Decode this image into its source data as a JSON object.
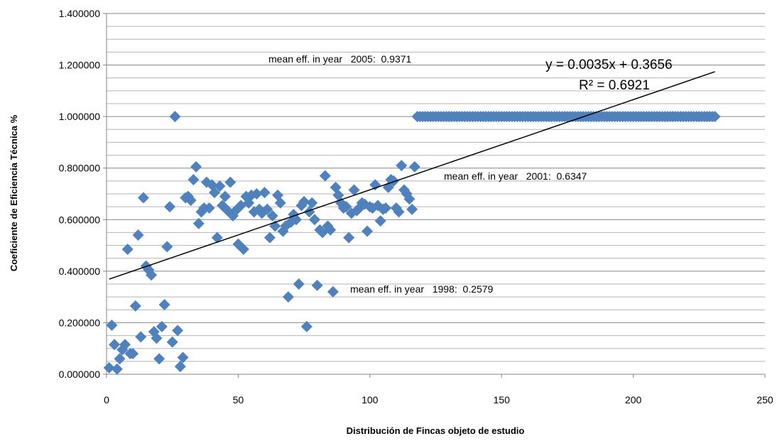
{
  "chart_data": {
    "type": "scatter",
    "title": "",
    "xlabel": "Distribución de Fincas objeto de estudio",
    "ylabel": "Coeficiente de Eficiencia Técnica %",
    "xlim": [
      0,
      250
    ],
    "ylim": [
      0,
      1.4
    ],
    "x_ticks": [
      "0",
      "50",
      "100",
      "150",
      "200",
      "250"
    ],
    "y_ticks": [
      "0.000000",
      "0.200000",
      "0.400000",
      "0.600000",
      "0.800000",
      "1.000000",
      "1.200000",
      "1.400000"
    ],
    "grid": "horizontal",
    "legend": "none",
    "marker": "diamond",
    "marker_color": "#4f81bd",
    "points": [
      [
        1,
        0.025
      ],
      [
        2,
        0.19
      ],
      [
        3,
        0.115
      ],
      [
        4,
        0.02
      ],
      [
        5,
        0.06
      ],
      [
        6,
        0.095
      ],
      [
        7,
        0.115
      ],
      [
        8,
        0.485
      ],
      [
        9,
        0.08
      ],
      [
        10,
        0.08
      ],
      [
        11,
        0.265
      ],
      [
        12,
        0.54
      ],
      [
        13,
        0.145
      ],
      [
        14,
        0.685
      ],
      [
        15,
        0.42
      ],
      [
        16,
        0.405
      ],
      [
        17,
        0.385
      ],
      [
        18,
        0.165
      ],
      [
        19,
        0.14
      ],
      [
        20,
        0.06
      ],
      [
        21,
        0.185
      ],
      [
        22,
        0.27
      ],
      [
        23,
        0.495
      ],
      [
        24,
        0.65
      ],
      [
        25,
        0.125
      ],
      [
        26,
        1.0
      ],
      [
        27,
        0.17
      ],
      [
        28,
        0.03
      ],
      [
        29,
        0.065
      ],
      [
        30,
        0.685
      ],
      [
        31,
        0.69
      ],
      [
        32,
        0.675
      ],
      [
        33,
        0.755
      ],
      [
        34,
        0.805
      ],
      [
        35,
        0.585
      ],
      [
        36,
        0.63
      ],
      [
        37,
        0.645
      ],
      [
        38,
        0.745
      ],
      [
        39,
        0.645
      ],
      [
        40,
        0.735
      ],
      [
        41,
        0.705
      ],
      [
        42,
        0.53
      ],
      [
        43,
        0.73
      ],
      [
        44,
        0.655
      ],
      [
        45,
        0.69
      ],
      [
        46,
        0.635
      ],
      [
        47,
        0.745
      ],
      [
        48,
        0.615
      ],
      [
        49,
        0.635
      ],
      [
        50,
        0.505
      ],
      [
        51,
        0.655
      ],
      [
        52,
        0.485
      ],
      [
        53,
        0.69
      ],
      [
        54,
        0.665
      ],
      [
        55,
        0.695
      ],
      [
        56,
        0.63
      ],
      [
        57,
        0.7
      ],
      [
        58,
        0.64
      ],
      [
        59,
        0.625
      ],
      [
        60,
        0.705
      ],
      [
        61,
        0.64
      ],
      [
        62,
        0.53
      ],
      [
        63,
        0.615
      ],
      [
        64,
        0.575
      ],
      [
        65,
        0.695
      ],
      [
        66,
        0.665
      ],
      [
        67,
        0.555
      ],
      [
        68,
        0.575
      ],
      [
        69,
        0.3
      ],
      [
        70,
        0.59
      ],
      [
        71,
        0.62
      ],
      [
        72,
        0.6
      ],
      [
        73,
        0.35
      ],
      [
        74,
        0.655
      ],
      [
        75,
        0.67
      ],
      [
        76,
        0.185
      ],
      [
        77,
        0.63
      ],
      [
        78,
        0.665
      ],
      [
        79,
        0.6
      ],
      [
        80,
        0.345
      ],
      [
        81,
        0.56
      ],
      [
        82,
        0.55
      ],
      [
        83,
        0.77
      ],
      [
        84,
        0.575
      ],
      [
        85,
        0.56
      ],
      [
        86,
        0.32
      ],
      [
        87,
        0.725
      ],
      [
        88,
        0.695
      ],
      [
        89,
        0.665
      ],
      [
        90,
        0.645
      ],
      [
        91,
        0.65
      ],
      [
        92,
        0.53
      ],
      [
        93,
        0.625
      ],
      [
        94,
        0.715
      ],
      [
        95,
        0.635
      ],
      [
        96,
        0.645
      ],
      [
        97,
        0.665
      ],
      [
        98,
        0.66
      ],
      [
        99,
        0.555
      ],
      [
        100,
        0.65
      ],
      [
        101,
        0.645
      ],
      [
        102,
        0.735
      ],
      [
        103,
        0.655
      ],
      [
        104,
        0.595
      ],
      [
        105,
        0.64
      ],
      [
        106,
        0.645
      ],
      [
        107,
        0.725
      ],
      [
        108,
        0.755
      ],
      [
        109,
        0.75
      ],
      [
        110,
        0.645
      ],
      [
        111,
        0.63
      ],
      [
        112,
        0.81
      ],
      [
        113,
        0.715
      ],
      [
        114,
        0.7
      ],
      [
        115,
        0.68
      ],
      [
        116,
        0.64
      ],
      [
        117,
        0.805
      ],
      [
        118,
        1.0
      ],
      [
        119,
        1.0
      ],
      [
        120,
        1.0
      ],
      [
        121,
        1.0
      ],
      [
        122,
        1.0
      ],
      [
        123,
        1.0
      ],
      [
        124,
        1.0
      ],
      [
        125,
        1.0
      ],
      [
        126,
        1.0
      ],
      [
        127,
        1.0
      ],
      [
        128,
        1.0
      ],
      [
        129,
        1.0
      ],
      [
        130,
        1.0
      ],
      [
        131,
        1.0
      ],
      [
        132,
        1.0
      ],
      [
        133,
        1.0
      ],
      [
        134,
        1.0
      ],
      [
        135,
        1.0
      ],
      [
        136,
        1.0
      ],
      [
        137,
        1.0
      ],
      [
        138,
        1.0
      ],
      [
        139,
        1.0
      ],
      [
        140,
        1.0
      ],
      [
        141,
        1.0
      ],
      [
        142,
        1.0
      ],
      [
        143,
        1.0
      ],
      [
        144,
        1.0
      ],
      [
        145,
        1.0
      ],
      [
        146,
        1.0
      ],
      [
        147,
        1.0
      ],
      [
        148,
        1.0
      ],
      [
        149,
        1.0
      ],
      [
        150,
        1.0
      ],
      [
        151,
        1.0
      ],
      [
        152,
        1.0
      ],
      [
        153,
        1.0
      ],
      [
        154,
        1.0
      ],
      [
        155,
        1.0
      ],
      [
        156,
        1.0
      ],
      [
        157,
        1.0
      ],
      [
        158,
        1.0
      ],
      [
        159,
        1.0
      ],
      [
        160,
        1.0
      ],
      [
        161,
        1.0
      ],
      [
        162,
        1.0
      ],
      [
        163,
        1.0
      ],
      [
        164,
        1.0
      ],
      [
        165,
        1.0
      ],
      [
        166,
        1.0
      ],
      [
        167,
        1.0
      ],
      [
        168,
        1.0
      ],
      [
        169,
        1.0
      ],
      [
        170,
        1.0
      ],
      [
        171,
        1.0
      ],
      [
        172,
        1.0
      ],
      [
        173,
        1.0
      ],
      [
        174,
        1.0
      ],
      [
        175,
        1.0
      ],
      [
        176,
        1.0
      ],
      [
        177,
        1.0
      ],
      [
        178,
        1.0
      ],
      [
        179,
        1.0
      ],
      [
        180,
        1.0
      ],
      [
        181,
        1.0
      ],
      [
        182,
        1.0
      ],
      [
        183,
        1.0
      ],
      [
        184,
        1.0
      ],
      [
        185,
        1.0
      ],
      [
        186,
        1.0
      ],
      [
        187,
        1.0
      ],
      [
        188,
        1.0
      ],
      [
        189,
        1.0
      ],
      [
        190,
        1.0
      ],
      [
        191,
        1.0
      ],
      [
        192,
        1.0
      ],
      [
        193,
        1.0
      ],
      [
        194,
        1.0
      ],
      [
        195,
        1.0
      ],
      [
        196,
        1.0
      ],
      [
        197,
        1.0
      ],
      [
        198,
        1.0
      ],
      [
        199,
        1.0
      ],
      [
        200,
        1.0
      ],
      [
        201,
        1.0
      ],
      [
        202,
        1.0
      ],
      [
        203,
        1.0
      ],
      [
        204,
        1.0
      ],
      [
        205,
        1.0
      ],
      [
        206,
        1.0
      ],
      [
        207,
        1.0
      ],
      [
        208,
        1.0
      ],
      [
        209,
        1.0
      ],
      [
        210,
        1.0
      ],
      [
        211,
        1.0
      ],
      [
        212,
        1.0
      ],
      [
        213,
        1.0
      ],
      [
        214,
        1.0
      ],
      [
        215,
        1.0
      ],
      [
        216,
        1.0
      ],
      [
        217,
        1.0
      ],
      [
        218,
        1.0
      ],
      [
        219,
        1.0
      ],
      [
        220,
        1.0
      ],
      [
        221,
        1.0
      ],
      [
        222,
        1.0
      ],
      [
        223,
        1.0
      ],
      [
        224,
        1.0
      ],
      [
        225,
        1.0
      ],
      [
        226,
        1.0
      ],
      [
        227,
        1.0
      ],
      [
        228,
        1.0
      ],
      [
        229,
        1.0
      ],
      [
        230,
        1.0
      ],
      [
        231,
        1.0
      ]
    ],
    "trendline": {
      "slope": 0.0035,
      "intercept": 0.3656,
      "x_range": [
        1,
        231
      ],
      "equation_label": "y = 0.0035x + 0.3656",
      "r2_label": "R² = 0.6921"
    },
    "annotations": [
      {
        "text": "mean eff. in year   2005:  0.9371"
      },
      {
        "text": "mean eff. in year   2001:  0.6347"
      },
      {
        "text": "mean eff. in year   1998:  0.2579"
      }
    ]
  }
}
